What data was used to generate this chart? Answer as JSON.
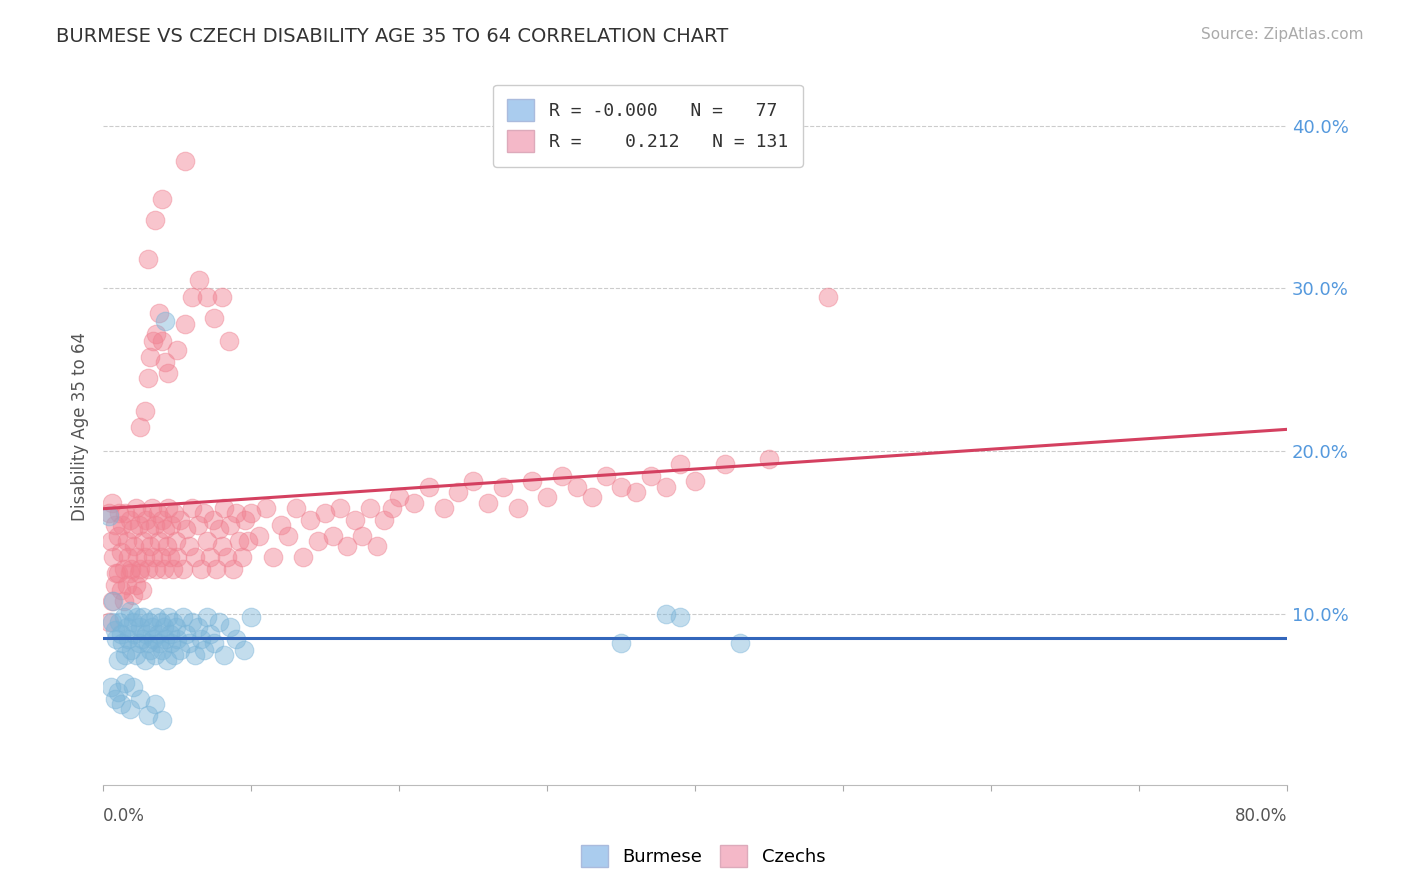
{
  "title": "BURMESE VS CZECH DISABILITY AGE 35 TO 64 CORRELATION CHART",
  "source": "Source: ZipAtlas.com",
  "ylabel": "Disability Age 35 to 64",
  "ytick_values": [
    0.1,
    0.2,
    0.3,
    0.4
  ],
  "ytick_labels": [
    "10.0%",
    "20.0%",
    "30.0%",
    "40.0%"
  ],
  "xlim": [
    0.0,
    0.8
  ],
  "ylim": [
    -0.005,
    0.435
  ],
  "burmese_color": "#7ab4d8",
  "czechs_color": "#f08090",
  "burmese_line_color": "#3366bb",
  "czechs_line_color": "#d44060",
  "legend_box_burmese": "#aaccee",
  "legend_box_czechs": "#f4b8c8",
  "background_color": "#ffffff",
  "grid_color": "#cccccc",
  "title_color": "#333333",
  "title_fontsize": 14,
  "ytick_color": "#5599dd",
  "burmese_points": [
    [
      0.004,
      0.16
    ],
    [
      0.006,
      0.095
    ],
    [
      0.007,
      0.108
    ],
    [
      0.008,
      0.09
    ],
    [
      0.009,
      0.085
    ],
    [
      0.01,
      0.072
    ],
    [
      0.011,
      0.095
    ],
    [
      0.012,
      0.088
    ],
    [
      0.013,
      0.082
    ],
    [
      0.014,
      0.098
    ],
    [
      0.015,
      0.075
    ],
    [
      0.016,
      0.092
    ],
    [
      0.017,
      0.085
    ],
    [
      0.018,
      0.102
    ],
    [
      0.019,
      0.078
    ],
    [
      0.02,
      0.095
    ],
    [
      0.021,
      0.088
    ],
    [
      0.022,
      0.075
    ],
    [
      0.023,
      0.098
    ],
    [
      0.024,
      0.082
    ],
    [
      0.025,
      0.092
    ],
    [
      0.026,
      0.085
    ],
    [
      0.027,
      0.098
    ],
    [
      0.028,
      0.072
    ],
    [
      0.029,
      0.088
    ],
    [
      0.03,
      0.082
    ],
    [
      0.031,
      0.095
    ],
    [
      0.032,
      0.078
    ],
    [
      0.033,
      0.092
    ],
    [
      0.034,
      0.085
    ],
    [
      0.035,
      0.075
    ],
    [
      0.036,
      0.098
    ],
    [
      0.037,
      0.088
    ],
    [
      0.038,
      0.082
    ],
    [
      0.039,
      0.095
    ],
    [
      0.04,
      0.078
    ],
    [
      0.041,
      0.092
    ],
    [
      0.042,
      0.085
    ],
    [
      0.043,
      0.072
    ],
    [
      0.044,
      0.098
    ],
    [
      0.045,
      0.088
    ],
    [
      0.046,
      0.082
    ],
    [
      0.047,
      0.095
    ],
    [
      0.048,
      0.075
    ],
    [
      0.049,
      0.092
    ],
    [
      0.05,
      0.085
    ],
    [
      0.052,
      0.078
    ],
    [
      0.054,
      0.098
    ],
    [
      0.056,
      0.088
    ],
    [
      0.058,
      0.082
    ],
    [
      0.06,
      0.095
    ],
    [
      0.062,
      0.075
    ],
    [
      0.064,
      0.092
    ],
    [
      0.066,
      0.085
    ],
    [
      0.068,
      0.078
    ],
    [
      0.07,
      0.098
    ],
    [
      0.072,
      0.088
    ],
    [
      0.075,
      0.082
    ],
    [
      0.078,
      0.095
    ],
    [
      0.082,
      0.075
    ],
    [
      0.086,
      0.092
    ],
    [
      0.09,
      0.085
    ],
    [
      0.095,
      0.078
    ],
    [
      0.1,
      0.098
    ],
    [
      0.005,
      0.055
    ],
    [
      0.008,
      0.048
    ],
    [
      0.01,
      0.052
    ],
    [
      0.012,
      0.045
    ],
    [
      0.015,
      0.058
    ],
    [
      0.018,
      0.042
    ],
    [
      0.02,
      0.055
    ],
    [
      0.025,
      0.048
    ],
    [
      0.03,
      0.038
    ],
    [
      0.035,
      0.045
    ],
    [
      0.04,
      0.035
    ],
    [
      0.042,
      0.28
    ],
    [
      0.38,
      0.1
    ],
    [
      0.39,
      0.098
    ],
    [
      0.43,
      0.082
    ],
    [
      0.35,
      0.082
    ]
  ],
  "czechs_points": [
    [
      0.004,
      0.162
    ],
    [
      0.005,
      0.145
    ],
    [
      0.006,
      0.168
    ],
    [
      0.007,
      0.135
    ],
    [
      0.008,
      0.155
    ],
    [
      0.009,
      0.125
    ],
    [
      0.01,
      0.148
    ],
    [
      0.011,
      0.162
    ],
    [
      0.012,
      0.138
    ],
    [
      0.013,
      0.155
    ],
    [
      0.014,
      0.128
    ],
    [
      0.015,
      0.162
    ],
    [
      0.016,
      0.145
    ],
    [
      0.017,
      0.135
    ],
    [
      0.018,
      0.158
    ],
    [
      0.019,
      0.128
    ],
    [
      0.02,
      0.152
    ],
    [
      0.021,
      0.142
    ],
    [
      0.022,
      0.165
    ],
    [
      0.023,
      0.135
    ],
    [
      0.024,
      0.155
    ],
    [
      0.025,
      0.128
    ],
    [
      0.026,
      0.162
    ],
    [
      0.027,
      0.145
    ],
    [
      0.028,
      0.135
    ],
    [
      0.029,
      0.158
    ],
    [
      0.03,
      0.128
    ],
    [
      0.031,
      0.152
    ],
    [
      0.032,
      0.142
    ],
    [
      0.033,
      0.165
    ],
    [
      0.034,
      0.135
    ],
    [
      0.035,
      0.155
    ],
    [
      0.036,
      0.128
    ],
    [
      0.037,
      0.162
    ],
    [
      0.038,
      0.145
    ],
    [
      0.039,
      0.135
    ],
    [
      0.04,
      0.158
    ],
    [
      0.041,
      0.128
    ],
    [
      0.042,
      0.152
    ],
    [
      0.043,
      0.142
    ],
    [
      0.044,
      0.165
    ],
    [
      0.045,
      0.135
    ],
    [
      0.046,
      0.155
    ],
    [
      0.047,
      0.128
    ],
    [
      0.048,
      0.162
    ],
    [
      0.049,
      0.145
    ],
    [
      0.05,
      0.135
    ],
    [
      0.052,
      0.158
    ],
    [
      0.054,
      0.128
    ],
    [
      0.056,
      0.152
    ],
    [
      0.058,
      0.142
    ],
    [
      0.06,
      0.165
    ],
    [
      0.062,
      0.135
    ],
    [
      0.064,
      0.155
    ],
    [
      0.066,
      0.128
    ],
    [
      0.068,
      0.162
    ],
    [
      0.07,
      0.145
    ],
    [
      0.072,
      0.135
    ],
    [
      0.074,
      0.158
    ],
    [
      0.076,
      0.128
    ],
    [
      0.078,
      0.152
    ],
    [
      0.08,
      0.142
    ],
    [
      0.082,
      0.165
    ],
    [
      0.084,
      0.135
    ],
    [
      0.086,
      0.155
    ],
    [
      0.088,
      0.128
    ],
    [
      0.09,
      0.162
    ],
    [
      0.092,
      0.145
    ],
    [
      0.094,
      0.135
    ],
    [
      0.096,
      0.158
    ],
    [
      0.098,
      0.145
    ],
    [
      0.1,
      0.162
    ],
    [
      0.105,
      0.148
    ],
    [
      0.11,
      0.165
    ],
    [
      0.115,
      0.135
    ],
    [
      0.12,
      0.155
    ],
    [
      0.125,
      0.148
    ],
    [
      0.13,
      0.165
    ],
    [
      0.135,
      0.135
    ],
    [
      0.14,
      0.158
    ],
    [
      0.145,
      0.145
    ],
    [
      0.15,
      0.162
    ],
    [
      0.155,
      0.148
    ],
    [
      0.16,
      0.165
    ],
    [
      0.165,
      0.142
    ],
    [
      0.17,
      0.158
    ],
    [
      0.175,
      0.148
    ],
    [
      0.18,
      0.165
    ],
    [
      0.185,
      0.142
    ],
    [
      0.19,
      0.158
    ],
    [
      0.195,
      0.165
    ],
    [
      0.2,
      0.172
    ],
    [
      0.21,
      0.168
    ],
    [
      0.22,
      0.178
    ],
    [
      0.23,
      0.165
    ],
    [
      0.24,
      0.175
    ],
    [
      0.25,
      0.182
    ],
    [
      0.26,
      0.168
    ],
    [
      0.27,
      0.178
    ],
    [
      0.28,
      0.165
    ],
    [
      0.29,
      0.182
    ],
    [
      0.3,
      0.172
    ],
    [
      0.31,
      0.185
    ],
    [
      0.32,
      0.178
    ],
    [
      0.33,
      0.172
    ],
    [
      0.34,
      0.185
    ],
    [
      0.35,
      0.178
    ],
    [
      0.36,
      0.175
    ],
    [
      0.37,
      0.185
    ],
    [
      0.38,
      0.178
    ],
    [
      0.39,
      0.192
    ],
    [
      0.4,
      0.182
    ],
    [
      0.42,
      0.192
    ],
    [
      0.45,
      0.195
    ],
    [
      0.025,
      0.215
    ],
    [
      0.028,
      0.225
    ],
    [
      0.03,
      0.245
    ],
    [
      0.032,
      0.258
    ],
    [
      0.034,
      0.268
    ],
    [
      0.036,
      0.272
    ],
    [
      0.038,
      0.285
    ],
    [
      0.04,
      0.268
    ],
    [
      0.042,
      0.255
    ],
    [
      0.044,
      0.248
    ],
    [
      0.05,
      0.262
    ],
    [
      0.055,
      0.278
    ],
    [
      0.06,
      0.295
    ],
    [
      0.065,
      0.305
    ],
    [
      0.07,
      0.295
    ],
    [
      0.075,
      0.282
    ],
    [
      0.08,
      0.295
    ],
    [
      0.085,
      0.268
    ],
    [
      0.03,
      0.318
    ],
    [
      0.035,
      0.342
    ],
    [
      0.04,
      0.355
    ],
    [
      0.055,
      0.378
    ],
    [
      0.49,
      0.295
    ],
    [
      0.004,
      0.095
    ],
    [
      0.006,
      0.108
    ],
    [
      0.008,
      0.118
    ],
    [
      0.01,
      0.125
    ],
    [
      0.012,
      0.115
    ],
    [
      0.014,
      0.108
    ],
    [
      0.016,
      0.118
    ],
    [
      0.018,
      0.125
    ],
    [
      0.02,
      0.112
    ],
    [
      0.022,
      0.118
    ],
    [
      0.024,
      0.125
    ],
    [
      0.026,
      0.115
    ]
  ]
}
